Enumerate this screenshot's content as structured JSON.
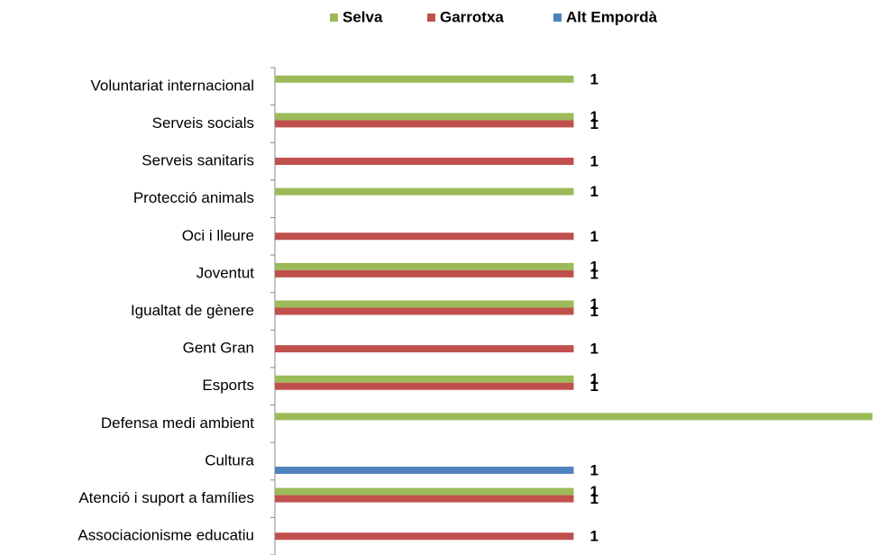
{
  "chart_data": {
    "type": "bar",
    "orientation": "horizontal",
    "categories": [
      "Voluntariat internacional",
      "Serveis socials",
      "Serveis sanitaris",
      "Protecció animals",
      "Oci i lleure",
      "Joventut",
      "Igualtat de gènere",
      "Gent Gran",
      "Esports",
      "Defensa medi ambient",
      "Cultura",
      "Atenció i suport a famílies",
      "Associacionisme educatiu"
    ],
    "series": [
      {
        "name": "Selva",
        "color": "#9bbb59",
        "values": [
          1,
          1,
          null,
          1,
          null,
          1,
          1,
          null,
          1,
          2,
          null,
          1,
          null
        ]
      },
      {
        "name": "Garrotxa",
        "color": "#c0504d",
        "values": [
          null,
          1,
          1,
          null,
          1,
          1,
          1,
          1,
          1,
          null,
          null,
          1,
          1
        ]
      },
      {
        "name": "Alt Empordà",
        "color": "#4f81bd",
        "values": [
          null,
          null,
          null,
          null,
          null,
          null,
          null,
          null,
          null,
          null,
          1,
          null,
          null
        ]
      }
    ],
    "xlim": [
      0,
      2
    ],
    "legend": "top"
  }
}
